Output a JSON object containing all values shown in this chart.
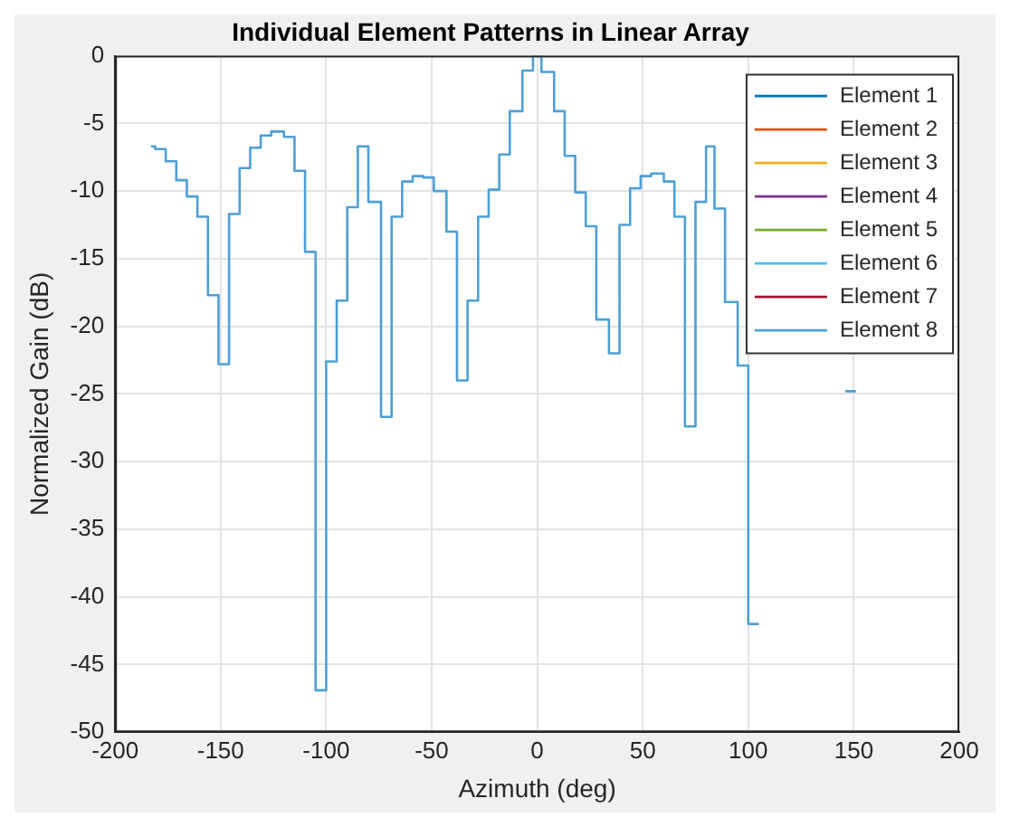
{
  "chart_data": {
    "type": "line",
    "title": "Individual Element Patterns in Linear Array",
    "xlabel": "Azimuth (deg)",
    "ylabel": "Normalized Gain (dB)",
    "x": [
      -183,
      -181,
      -181,
      -176,
      -176,
      -171,
      -171,
      -166,
      -166,
      -161,
      -161,
      -156,
      -156,
      -151,
      -151,
      -146,
      -146,
      -141,
      -141,
      -136,
      -136,
      -131,
      -131,
      -126,
      -126,
      -120,
      -120,
      -115,
      -115,
      -110,
      -110,
      -105,
      -105,
      -100,
      -100,
      -95,
      -95,
      -90,
      -90,
      -85,
      -85,
      -80,
      -80,
      -74,
      -74,
      -69,
      -69,
      -64,
      -64,
      -59,
      -59,
      -54,
      -54,
      -49,
      -49,
      -43,
      -43,
      -38,
      -38,
      -33,
      -33,
      -28,
      -28,
      -23,
      -23,
      -18,
      -18,
      -13,
      -13,
      -7,
      -7,
      -2,
      -2,
      2,
      2,
      8,
      8,
      13,
      13,
      18,
      18,
      23,
      23,
      28,
      28,
      34,
      34,
      39,
      39,
      44,
      44,
      49,
      49,
      54,
      54,
      60,
      60,
      65,
      65,
      70,
      70,
      75,
      75,
      80,
      80,
      84,
      84,
      89,
      89,
      95,
      95,
      100,
      100,
      105,
      125,
      146,
      151
    ],
    "series": [
      {
        "name": "Element 1",
        "color": "#0072bd",
        "values": [
          null,
          null,
          null,
          null,
          null,
          null,
          null,
          null,
          null,
          null,
          null,
          null,
          null,
          null,
          null,
          null,
          null,
          null,
          null,
          null,
          null,
          null,
          null,
          null,
          null,
          null,
          null,
          null,
          null,
          null,
          null,
          null,
          null,
          null,
          null,
          null,
          null,
          null,
          null,
          null,
          null,
          null,
          null,
          null,
          null,
          null,
          null,
          null,
          null,
          null,
          null,
          null,
          null,
          null,
          null,
          null,
          null,
          null,
          null,
          null,
          null,
          null,
          null,
          null,
          null,
          null,
          null,
          null,
          null,
          null,
          null,
          null,
          null,
          null,
          null,
          null,
          null,
          null,
          null,
          null,
          null,
          null,
          null,
          null,
          null,
          null,
          null,
          null,
          null,
          null,
          null,
          null,
          null,
          null,
          null,
          null,
          null,
          null,
          null,
          null,
          null,
          null,
          null,
          null,
          null,
          null,
          null,
          null,
          null,
          null,
          null,
          null,
          null,
          null,
          null,
          null,
          null
        ]
      },
      {
        "name": "Element 2",
        "color": "#d95319",
        "values": [
          null,
          null,
          null,
          null,
          null,
          null,
          null,
          null,
          null,
          null,
          null,
          null,
          null,
          null,
          null,
          null,
          null,
          null,
          null,
          null,
          null,
          null,
          null,
          null,
          null,
          null,
          null,
          null,
          null,
          null,
          null,
          null,
          null,
          null,
          null,
          null,
          null,
          null,
          null,
          null,
          null,
          null,
          null,
          null,
          null,
          null,
          null,
          null,
          null,
          null,
          null,
          null,
          null,
          null,
          null,
          null,
          null,
          null,
          null,
          null,
          null,
          null,
          null,
          null,
          null,
          null,
          null,
          null,
          null,
          null,
          null,
          null,
          null,
          null,
          null,
          null,
          null,
          null,
          null,
          null,
          null,
          null,
          null,
          null,
          null,
          null,
          null,
          null,
          null,
          null,
          null,
          null,
          null,
          null,
          null,
          null,
          null,
          null,
          null,
          null,
          null,
          null,
          null,
          null,
          null,
          null,
          null,
          null,
          null,
          null,
          null,
          null,
          null,
          null,
          null,
          null,
          null
        ]
      },
      {
        "name": "Element 3",
        "color": "#edb120",
        "values": [
          null,
          null,
          null,
          null,
          null,
          null,
          null,
          null,
          null,
          null,
          null,
          null,
          null,
          null,
          null,
          null,
          null,
          null,
          null,
          null,
          null,
          null,
          null,
          null,
          null,
          null,
          null,
          null,
          null,
          null,
          null,
          null,
          null,
          null,
          null,
          null,
          null,
          null,
          null,
          null,
          null,
          null,
          null,
          null,
          null,
          null,
          null,
          null,
          null,
          null,
          null,
          null,
          null,
          null,
          null,
          null,
          null,
          null,
          null,
          null,
          null,
          null,
          null,
          null,
          null,
          null,
          null,
          null,
          null,
          null,
          null,
          null,
          null,
          null,
          null,
          null,
          null,
          null,
          null,
          null,
          null,
          null,
          null,
          null,
          null,
          null,
          null,
          null,
          null,
          null,
          null,
          null,
          null,
          null,
          null,
          null,
          null,
          null,
          null,
          null,
          null,
          null,
          null,
          null,
          null,
          null,
          null,
          null,
          null,
          null,
          null,
          null,
          null,
          null,
          null,
          null,
          null
        ]
      },
      {
        "name": "Element 4",
        "color": "#7e2f8e",
        "values": [
          null,
          null,
          null,
          null,
          null,
          null,
          null,
          null,
          null,
          null,
          null,
          null,
          null,
          null,
          null,
          null,
          null,
          null,
          null,
          null,
          null,
          null,
          null,
          null,
          null,
          null,
          null,
          null,
          null,
          null,
          null,
          null,
          null,
          null,
          null,
          null,
          null,
          null,
          null,
          null,
          null,
          null,
          null,
          null,
          null,
          null,
          null,
          null,
          null,
          null,
          null,
          null,
          null,
          null,
          null,
          null,
          null,
          null,
          null,
          null,
          null,
          null,
          null,
          null,
          null,
          null,
          null,
          null,
          null,
          null,
          null,
          null,
          null,
          null,
          null,
          null,
          null,
          null,
          null,
          null,
          null,
          null,
          null,
          null,
          null,
          null,
          null,
          null,
          null,
          null,
          null,
          null,
          null,
          null,
          null,
          null,
          null,
          null,
          null,
          null,
          null,
          null,
          null,
          null,
          null,
          null,
          null,
          null,
          null,
          null,
          null,
          null,
          null,
          null,
          null,
          null,
          null
        ]
      },
      {
        "name": "Element 5",
        "color": "#77ac30",
        "values": [
          null,
          null,
          null,
          null,
          null,
          null,
          null,
          null,
          null,
          null,
          null,
          null,
          null,
          null,
          null,
          null,
          null,
          null,
          null,
          null,
          null,
          null,
          null,
          null,
          null,
          null,
          null,
          null,
          null,
          null,
          null,
          null,
          null,
          null,
          null,
          null,
          null,
          null,
          null,
          null,
          null,
          null,
          null,
          null,
          null,
          null,
          null,
          null,
          null,
          null,
          null,
          null,
          null,
          null,
          null,
          null,
          null,
          null,
          null,
          null,
          null,
          null,
          null,
          null,
          null,
          null,
          null,
          null,
          null,
          null,
          null,
          null,
          null,
          null,
          null,
          null,
          null,
          null,
          null,
          null,
          null,
          null,
          null,
          null,
          null,
          null,
          null,
          null,
          null,
          null,
          null,
          null,
          null,
          null,
          null,
          null,
          null,
          null,
          null,
          null,
          null,
          null,
          null,
          null,
          null,
          null,
          null,
          null,
          null,
          null,
          null,
          null,
          null,
          null,
          null,
          null,
          null
        ]
      },
      {
        "name": "Element 6",
        "color": "#4dbeee",
        "values": [
          null,
          null,
          null,
          null,
          null,
          null,
          null,
          null,
          null,
          null,
          null,
          null,
          null,
          null,
          null,
          null,
          null,
          null,
          null,
          null,
          null,
          null,
          null,
          null,
          null,
          null,
          null,
          null,
          null,
          null,
          null,
          null,
          null,
          null,
          null,
          null,
          null,
          null,
          null,
          null,
          null,
          null,
          null,
          null,
          null,
          null,
          null,
          null,
          null,
          null,
          null,
          null,
          null,
          null,
          null,
          null,
          null,
          null,
          null,
          null,
          null,
          null,
          null,
          null,
          null,
          null,
          null,
          null,
          null,
          null,
          null,
          null,
          null,
          null,
          null,
          null,
          null,
          null,
          null,
          null,
          null,
          null,
          null,
          null,
          null,
          null,
          null,
          null,
          null,
          null,
          null,
          null,
          null,
          null,
          null,
          null,
          null,
          null,
          null,
          null,
          null,
          null,
          null,
          null,
          null,
          null,
          null,
          null,
          null,
          null,
          null,
          null,
          null,
          null,
          null,
          null,
          null
        ]
      },
      {
        "name": "Element 7",
        "color": "#a2142f",
        "values": [
          null,
          null,
          null,
          null,
          null,
          null,
          null,
          null,
          null,
          null,
          null,
          null,
          null,
          null,
          null,
          null,
          null,
          null,
          null,
          null,
          null,
          null,
          null,
          null,
          null,
          null,
          null,
          null,
          null,
          null,
          null,
          null,
          null,
          null,
          null,
          null,
          null,
          null,
          null,
          null,
          null,
          null,
          null,
          null,
          null,
          null,
          null,
          null,
          null,
          null,
          null,
          null,
          null,
          null,
          null,
          null,
          null,
          null,
          null,
          null,
          null,
          null,
          null,
          null,
          null,
          null,
          null,
          null,
          null,
          null,
          null,
          null,
          null,
          null,
          null,
          null,
          null,
          null,
          null,
          null,
          null,
          null,
          null,
          null,
          null,
          null,
          null,
          null,
          null,
          null,
          null,
          null,
          null,
          null,
          null,
          null,
          null,
          null,
          null,
          null,
          null,
          null,
          null,
          null,
          null,
          null,
          null,
          null,
          null,
          null,
          null,
          null,
          null,
          null,
          null,
          null,
          null
        ]
      },
      {
        "name": "Element 8",
        "color": "#4d9fd6",
        "values": [
          -6.7,
          -6.7,
          -6.9,
          -6.9,
          -7.8,
          -7.8,
          -9.2,
          -9.2,
          -10.4,
          -10.4,
          -11.9,
          -11.9,
          -17.7,
          -17.7,
          -22.8,
          -22.8,
          -11.7,
          -11.7,
          -8.3,
          -8.3,
          -6.8,
          -6.8,
          -5.9,
          -5.9,
          -5.6,
          -5.6,
          -6.0,
          -6.0,
          -8.5,
          -8.5,
          -14.5,
          -14.5,
          -46.9,
          -46.9,
          -22.6,
          -22.6,
          -18.1,
          -18.1,
          -11.2,
          -11.2,
          -6.7,
          -6.7,
          -10.8,
          -10.8,
          -26.7,
          -26.7,
          -11.9,
          -11.9,
          -9.3,
          -9.3,
          -8.9,
          -8.9,
          -9.0,
          -9.0,
          -10.0,
          -10.0,
          -13.0,
          -13.0,
          -24.0,
          -24.0,
          -18.1,
          -18.1,
          -11.9,
          -11.9,
          -9.9,
          -9.9,
          -7.3,
          -7.3,
          -4.1,
          -4.1,
          -1.1,
          -1.1,
          0,
          0,
          -1.2,
          -1.2,
          -4.1,
          -4.1,
          -7.4,
          -7.4,
          -10.1,
          -10.1,
          -12.6,
          -12.6,
          -19.5,
          -19.5,
          -22.0,
          -22.0,
          -12.5,
          -12.5,
          -9.8,
          -9.8,
          -8.9,
          -8.9,
          -8.7,
          -8.7,
          -9.3,
          -9.3,
          -11.9,
          -11.9,
          -27.4,
          -27.4,
          -10.8,
          -10.8,
          -6.7,
          -6.7,
          -11.3,
          -11.3,
          -18.2,
          -18.2,
          -22.9,
          -22.9,
          -42.0,
          -42.0,
          null,
          -24.8,
          -24.8
        ]
      }
    ],
    "xlim": [
      -200,
      200
    ],
    "xticks": [
      -200,
      -150,
      -100,
      -50,
      0,
      50,
      100,
      150,
      200
    ],
    "ylim": [
      -50,
      0
    ],
    "yticks": [
      -50,
      -45,
      -40,
      -35,
      -30,
      -25,
      -20,
      -15,
      -10,
      -5,
      0
    ],
    "grid": true,
    "legend": "top right"
  }
}
